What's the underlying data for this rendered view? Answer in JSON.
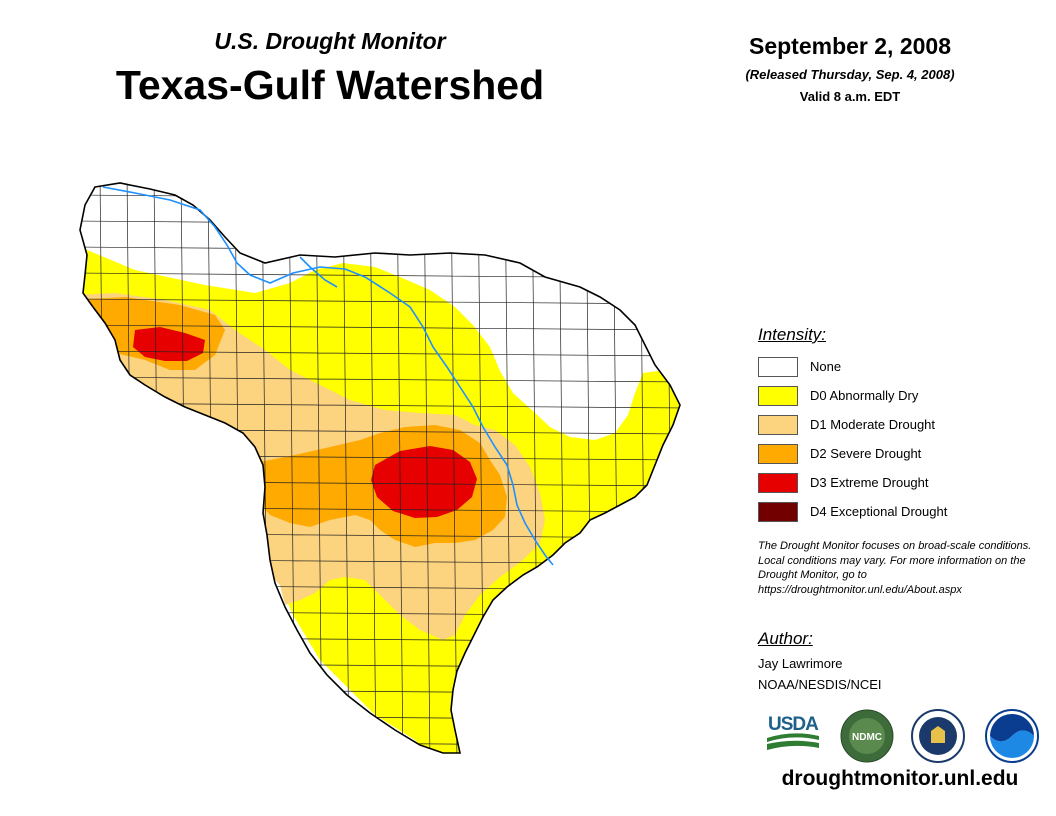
{
  "header": {
    "subtitle": "U.S. Drought Monitor",
    "title": "Texas-Gulf Watershed"
  },
  "date_block": {
    "date": "September 2, 2008",
    "released": "(Released Thursday, Sep. 4, 2008)",
    "valid": "Valid 8 a.m. EDT"
  },
  "legend": {
    "heading": "Intensity:",
    "items": [
      {
        "label": "None",
        "color": "#ffffff"
      },
      {
        "label": "D0 Abnormally Dry",
        "color": "#ffff00"
      },
      {
        "label": "D1 Moderate Drought",
        "color": "#fcd37f"
      },
      {
        "label": "D2 Severe Drought",
        "color": "#ffaa00"
      },
      {
        "label": "D3 Extreme Drought",
        "color": "#e60000"
      },
      {
        "label": "D4 Exceptional Drought",
        "color": "#730000"
      }
    ]
  },
  "note": "The Drought Monitor focuses on broad-scale conditions. Local conditions may vary. For more information on the Drought Monitor, go to https://droughtmonitor.unl.edu/About.aspx",
  "author": {
    "heading": "Author:",
    "name": "Jay Lawrimore",
    "org": "NOAA/NESDIS/NCEI"
  },
  "logos": {
    "usda": "USDA",
    "ndmc": "NDMC"
  },
  "website": "droughtmonitor.unl.edu"
}
